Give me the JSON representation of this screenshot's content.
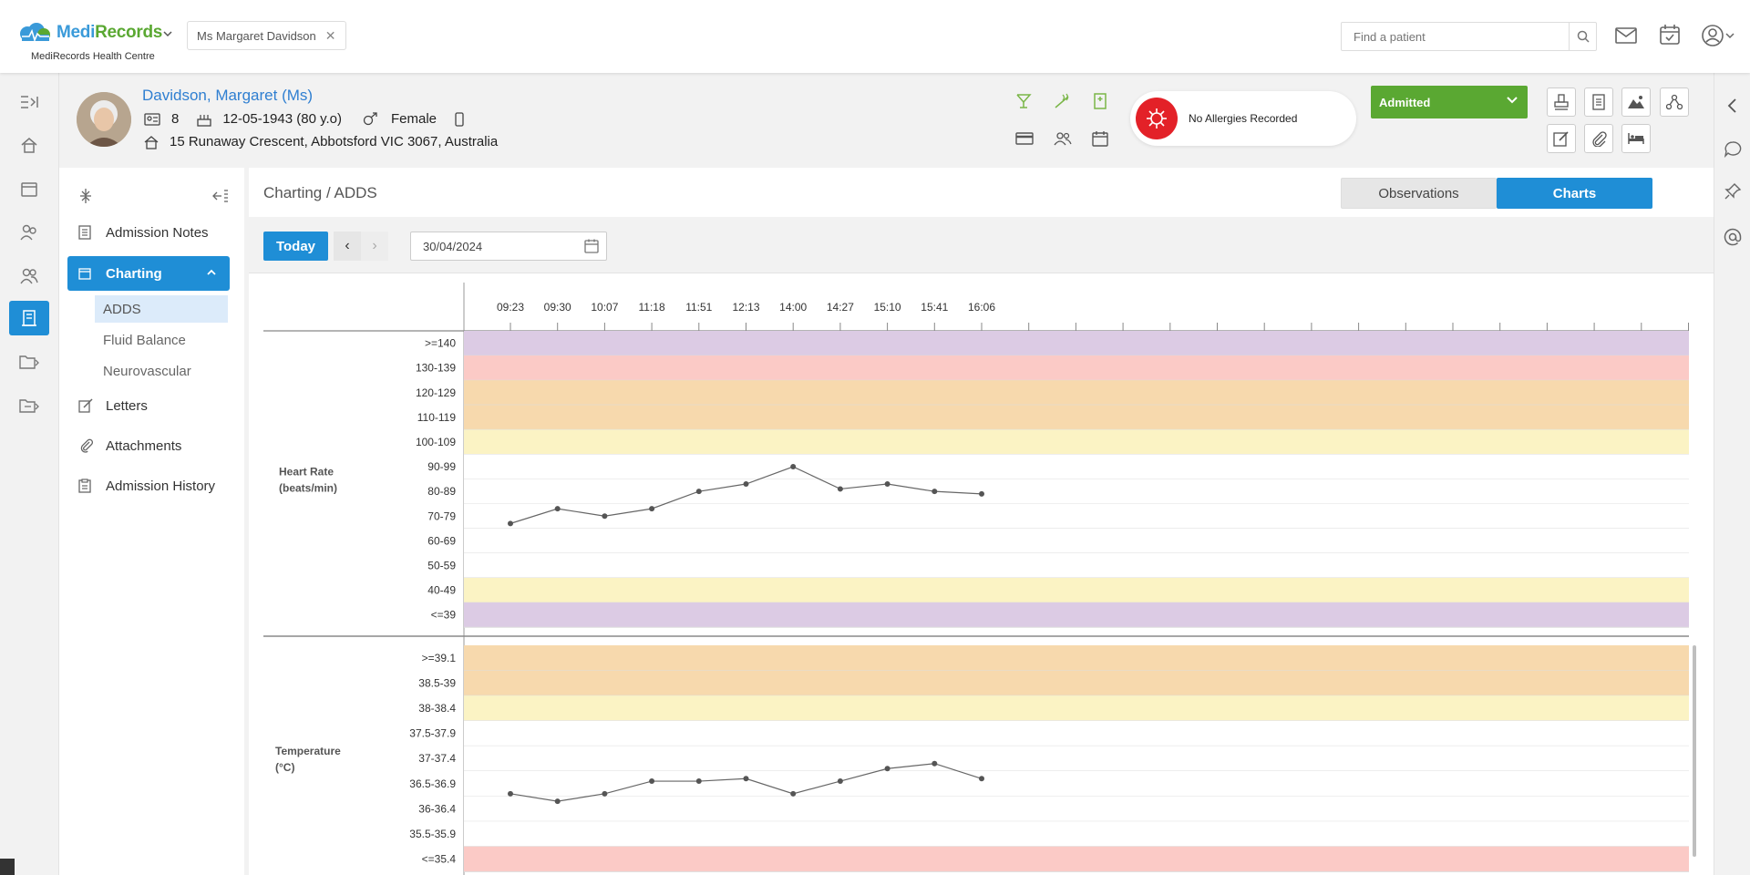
{
  "app": {
    "logo": {
      "part1": "Medi",
      "part2": "Records"
    },
    "centre": "MediRecords Health Centre",
    "open_patient_tab": "Ms Margaret Davidson",
    "search_placeholder": "Find a patient"
  },
  "patient": {
    "name": "Davidson, Margaret (Ms)",
    "id": "8",
    "dob": "12-05-1943 (80 y.o)",
    "gender": "Female",
    "address": "15 Runaway Crescent, Abbotsford VIC 3067, Australia",
    "allergies": "No Allergies Recorded",
    "status": "Admitted"
  },
  "sidebar": {
    "items": [
      {
        "label": "Admission Notes",
        "icon": "notes-icon"
      },
      {
        "label": "Charting",
        "icon": "calendar-icon"
      },
      {
        "label": "Letters",
        "icon": "edit-icon"
      },
      {
        "label": "Attachments",
        "icon": "paperclip-icon"
      },
      {
        "label": "Admission History",
        "icon": "clipboard-icon"
      }
    ],
    "charting_sub": [
      "ADDS",
      "Fluid Balance",
      "Neurovascular"
    ]
  },
  "main": {
    "breadcrumb": "Charting / ADDS",
    "tabs": [
      "Observations",
      "Charts"
    ],
    "today_label": "Today",
    "date": "30/04/2024"
  },
  "chart_data": {
    "type": "line",
    "x": [
      "09:23",
      "09:30",
      "10:07",
      "11:18",
      "11:51",
      "12:13",
      "14:00",
      "14:27",
      "15:10",
      "15:41",
      "16:06"
    ],
    "panels": [
      {
        "name": "Heart Rate\n(beats/min)",
        "bands": [
          ">=140",
          "130-139",
          "120-129",
          "110-119",
          "100-109",
          "90-99",
          "80-89",
          "70-79",
          "60-69",
          "50-59",
          "40-49",
          "<=39"
        ],
        "band_colors": [
          "#dccbe4",
          "#fbcac6",
          "#f7d9ad",
          "#f7d9ad",
          "#fbf3c4",
          "#ffffff",
          "#ffffff",
          "#ffffff",
          "#ffffff",
          "#ffffff",
          "#fbf3c4",
          "#dccbe4"
        ],
        "values": [
          72,
          78,
          75,
          78,
          85,
          88,
          95,
          86,
          88,
          85,
          84
        ],
        "ylim": [
          30,
          150
        ]
      },
      {
        "name": "Temperature\n(°C)",
        "bands": [
          ">=39.1",
          "38.5-39",
          "38-38.4",
          "37.5-37.9",
          "37-37.4",
          "36.5-36.9",
          "36-36.4",
          "35.5-35.9",
          "<=35.4"
        ],
        "band_colors": [
          "#f7d9ad",
          "#f7d9ad",
          "#fbf3c4",
          "#ffffff",
          "#ffffff",
          "#ffffff",
          "#ffffff",
          "#ffffff",
          "#fbcac6"
        ],
        "values": [
          36.55,
          36.4,
          36.55,
          36.8,
          36.8,
          36.85,
          36.55,
          36.8,
          37.05,
          37.15,
          36.85
        ],
        "ylim": [
          35.0,
          39.5
        ]
      }
    ]
  }
}
